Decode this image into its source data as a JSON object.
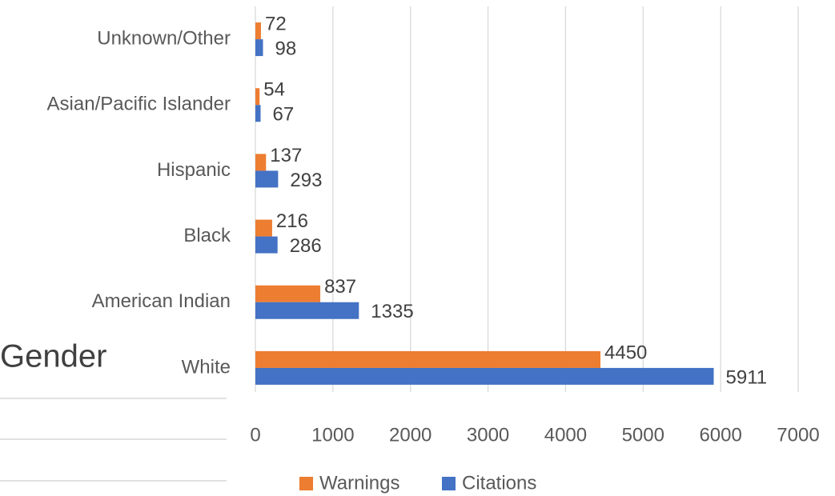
{
  "chart_data": {
    "type": "bar",
    "orientation": "horizontal",
    "annotation": "Gender",
    "categories": [
      "Unknown/Other",
      "Asian/Pacific Islander",
      "Hispanic",
      "Black",
      "American Indian",
      "White"
    ],
    "series": [
      {
        "name": "Warnings",
        "color": "#ed7d31",
        "values": [
          72,
          54,
          137,
          216,
          837,
          4450
        ]
      },
      {
        "name": "Citations",
        "color": "#4472c4",
        "values": [
          98,
          67,
          293,
          286,
          1335,
          5911
        ]
      }
    ],
    "xlim": [
      0,
      7000
    ],
    "xticks": [
      0,
      1000,
      2000,
      3000,
      4000,
      5000,
      6000,
      7000
    ],
    "grid": true,
    "legend": "bottom"
  }
}
